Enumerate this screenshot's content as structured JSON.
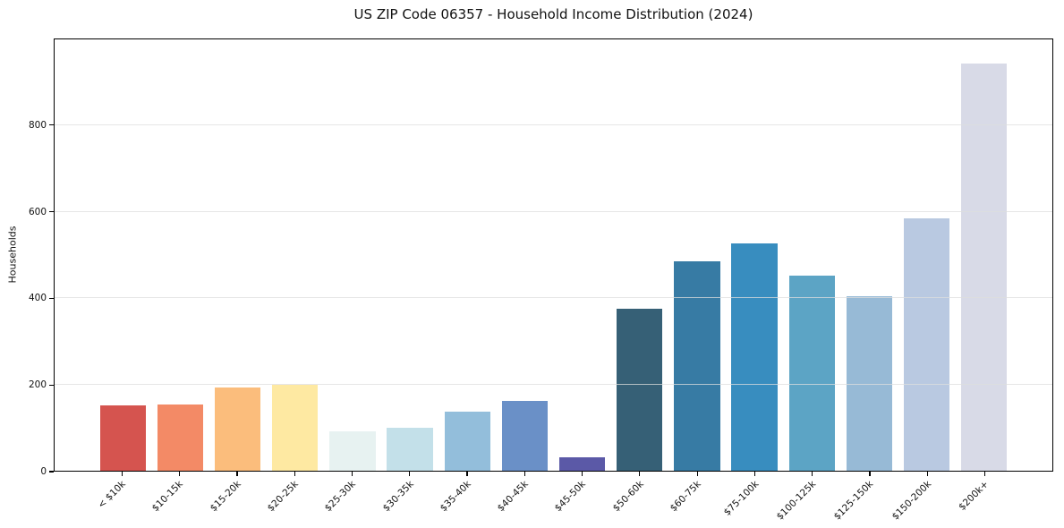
{
  "chart_data": {
    "type": "bar",
    "title": "US ZIP Code 06357 - Household Income Distribution (2024)",
    "xlabel": "",
    "ylabel": "Households",
    "categories": [
      "< $10k",
      "$10-15k",
      "$15-20k",
      "$20-25k",
      "$25-30k",
      "$30-35k",
      "$35-40k",
      "$40-45k",
      "$45-50k",
      "$50-60k",
      "$60-75k",
      "$75-100k",
      "$100-125k",
      "$125-150k",
      "$150-200k",
      "$200k+"
    ],
    "values": [
      152,
      154,
      192,
      200,
      91,
      100,
      137,
      162,
      31,
      375,
      486,
      527,
      453,
      404,
      586,
      945
    ],
    "bar_colors": [
      "#d5544f",
      "#f38a66",
      "#fbbd7c",
      "#fee9a2",
      "#e7f2f1",
      "#c3e0e9",
      "#93bedb",
      "#6a90c7",
      "#5b59a7",
      "#366076",
      "#377ba4",
      "#388dbf",
      "#5ca4c5",
      "#97bad6",
      "#b9c9e1",
      "#d8dae7"
    ],
    "ylim": [
      0,
      1000
    ],
    "yticks": [
      0,
      200,
      400,
      600,
      800
    ],
    "grid": true,
    "legend_position": "none",
    "axis_color": "#000000",
    "background_color": "#ffffff"
  }
}
